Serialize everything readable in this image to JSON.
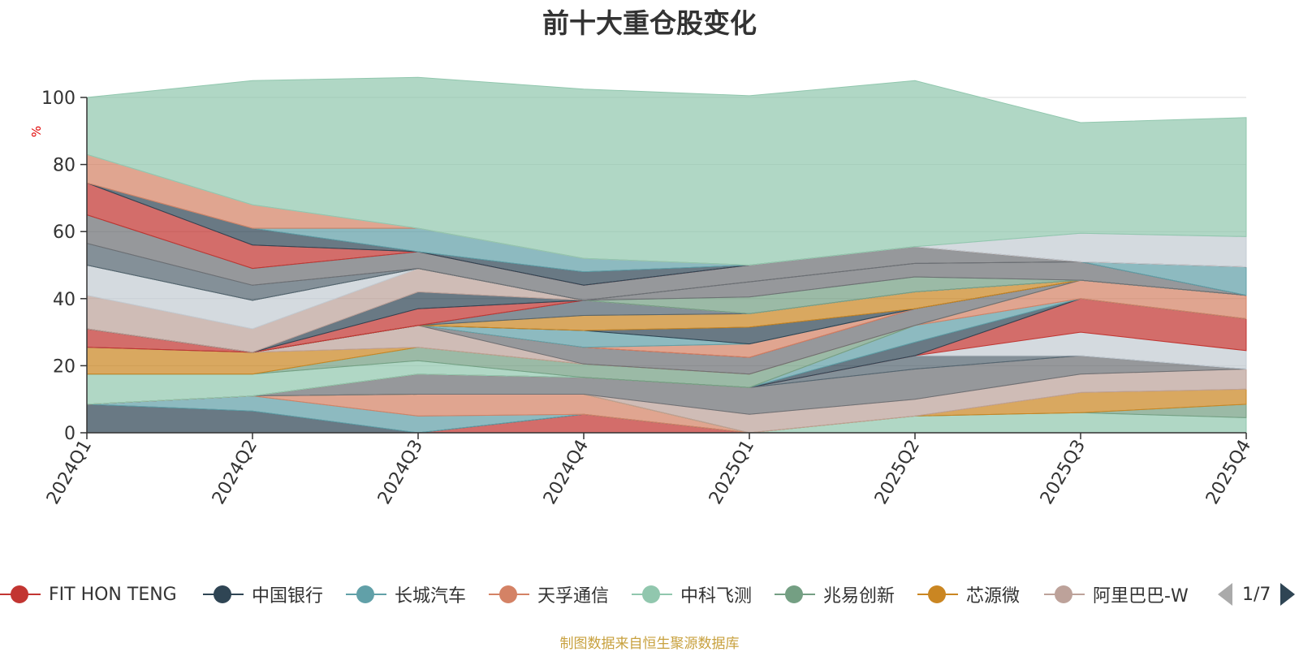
{
  "chart_data": {
    "type": "area",
    "title": "前十大重仓股变化",
    "ylabel": "%",
    "ylim": [
      0,
      100
    ],
    "y_ticks": [
      "0",
      "20",
      "40",
      "60",
      "80",
      "100"
    ],
    "categories": [
      "2024Q1",
      "2024Q2",
      "2024Q3",
      "2024Q4",
      "2025Q1",
      "2025Q2",
      "2025Q3",
      "2025Q4"
    ],
    "grid": true,
    "series": [
      {
        "name": "FIT HON TENG",
        "color": "#c23531",
        "values": [
          0,
          0,
          0,
          5.5,
          0,
          0,
          0,
          0
        ]
      },
      {
        "name": "中国银行",
        "color": "#2f4554",
        "values": [
          8.5,
          6.5,
          0,
          0,
          0,
          0,
          0,
          0
        ]
      },
      {
        "name": "长城汽车",
        "color": "#61a0a8",
        "values": [
          0,
          4.5,
          5,
          0,
          0,
          0,
          0,
          0
        ]
      },
      {
        "name": "天孚通信",
        "color": "#d48265",
        "values": [
          0,
          0,
          6.5,
          6,
          0,
          0,
          0,
          0
        ]
      },
      {
        "name": "中科飞测",
        "color": "#91c7ae",
        "values": [
          0,
          0,
          0,
          0,
          0,
          5,
          6,
          4.5
        ]
      },
      {
        "name": "兆易创新",
        "color": "#749f83",
        "values": [
          0,
          0,
          0,
          0,
          0,
          0,
          0,
          4
        ]
      },
      {
        "name": "芯源微",
        "color": "#ca8622",
        "values": [
          0,
          0,
          0,
          0,
          0,
          0,
          6,
          4.5
        ]
      },
      {
        "name": "阿里巴巴-W",
        "color": "#bda29a",
        "values": [
          0,
          0,
          0,
          0,
          5.5,
          5,
          5.5,
          6
        ]
      },
      {
        "name": "",
        "color": "#6e7074",
        "values": [
          0,
          0,
          6,
          5,
          8,
          9,
          5.5,
          0
        ]
      },
      {
        "name": "",
        "color": "#546570",
        "values": [
          0,
          0,
          0,
          0,
          0,
          4,
          0,
          0
        ]
      },
      {
        "name": "",
        "color": "#c4ccd3",
        "values": [
          0,
          0,
          0,
          0,
          0,
          0,
          7,
          5.5
        ]
      },
      {
        "name": "",
        "color": "#c23531",
        "values": [
          0,
          0,
          0,
          0,
          0,
          0,
          10,
          9.5
        ]
      },
      {
        "name": "",
        "color": "#2f4554",
        "values": [
          0,
          0,
          0,
          0,
          0,
          4,
          0,
          0
        ]
      },
      {
        "name": "",
        "color": "#61a0a8",
        "values": [
          0,
          0,
          0,
          0,
          0,
          5,
          0,
          0
        ]
      },
      {
        "name": "",
        "color": "#d48265",
        "values": [
          0,
          0,
          0,
          0,
          0,
          0,
          5.5,
          7
        ]
      },
      {
        "name": "",
        "color": "#91c7ae",
        "values": [
          9,
          6.5,
          4,
          0,
          0,
          0,
          0,
          0
        ]
      },
      {
        "name": "",
        "color": "#749f83",
        "values": [
          0,
          0,
          4,
          4,
          4,
          0,
          0,
          0
        ]
      },
      {
        "name": "",
        "color": "#ca8622",
        "values": [
          8,
          6.5,
          0,
          0,
          0,
          0,
          0,
          0
        ]
      },
      {
        "name": "",
        "color": "#bda29a",
        "values": [
          0,
          0,
          6.5,
          0,
          0,
          0,
          0,
          0
        ]
      },
      {
        "name": "",
        "color": "#6e7074",
        "values": [
          0,
          0,
          0,
          5,
          5,
          5,
          0,
          0
        ]
      },
      {
        "name": "",
        "color": "#c23531",
        "values": [
          5.5,
          0,
          0,
          0,
          0,
          0,
          0,
          0
        ]
      },
      {
        "name": "",
        "color": "#d48265",
        "values": [
          0,
          0,
          0,
          0,
          4,
          0,
          0,
          0
        ]
      },
      {
        "name": "",
        "color": "#61a0a8",
        "values": [
          0,
          0,
          0,
          5,
          0,
          0,
          0,
          0
        ]
      },
      {
        "name": "",
        "color": "#2f4554",
        "values": [
          0,
          0,
          0,
          0,
          5,
          0,
          0,
          0
        ]
      },
      {
        "name": "",
        "color": "#ca8622",
        "values": [
          0,
          0,
          0,
          4.5,
          4,
          5,
          0,
          0
        ]
      },
      {
        "name": "",
        "color": "#546570",
        "values": [
          0,
          0,
          0,
          4.5,
          0,
          0,
          0,
          0
        ]
      },
      {
        "name": "",
        "color": "#c23531",
        "values": [
          0,
          0,
          5,
          0,
          0,
          0,
          0,
          0
        ]
      },
      {
        "name": "",
        "color": "#2f4554",
        "values": [
          0,
          0,
          5,
          0,
          0,
          0,
          0,
          0
        ]
      },
      {
        "name": "",
        "color": "#bda29a",
        "values": [
          10,
          7,
          7,
          0,
          0,
          0,
          0,
          0
        ]
      },
      {
        "name": "",
        "color": "#c4ccd3",
        "values": [
          9,
          8.5,
          0,
          0,
          0,
          0,
          0,
          0
        ]
      },
      {
        "name": "",
        "color": "#749f83",
        "values": [
          0,
          0,
          0,
          0,
          5,
          4.5,
          0,
          0
        ]
      },
      {
        "name": "",
        "color": "#6e7074",
        "values": [
          0,
          0,
          0,
          0,
          4.5,
          4,
          5.5,
          0
        ]
      },
      {
        "name": "",
        "color": "#546570",
        "values": [
          6.5,
          4.5,
          0,
          0,
          0,
          0,
          0,
          0
        ]
      },
      {
        "name": "",
        "color": "#6e7074",
        "values": [
          8.5,
          5,
          5,
          4.5,
          5,
          5,
          0,
          0
        ]
      },
      {
        "name": "",
        "color": "#61a0a8",
        "values": [
          0,
          0,
          0,
          0,
          0,
          0,
          0,
          8.5
        ]
      },
      {
        "name": "",
        "color": "#c23531",
        "values": [
          9.5,
          7,
          0,
          0,
          0,
          0,
          0,
          0
        ]
      },
      {
        "name": "",
        "color": "#2f4554",
        "values": [
          0,
          5,
          0,
          4,
          0,
          0,
          0,
          0
        ]
      },
      {
        "name": "",
        "color": "#61a0a8",
        "values": [
          0,
          0,
          7,
          4,
          0,
          0,
          0,
          0
        ]
      },
      {
        "name": "",
        "color": "#d48265",
        "values": [
          8.5,
          7,
          0,
          0,
          0,
          0,
          0,
          0
        ]
      },
      {
        "name": "",
        "color": "#c4ccd3",
        "values": [
          0,
          0,
          0,
          0,
          0,
          0,
          8.5,
          9
        ]
      },
      {
        "name": "",
        "color": "#91c7ae",
        "values": [
          17,
          37,
          45,
          50.5,
          50.5,
          49.5,
          33,
          35.5
        ]
      }
    ],
    "legend_position": "bottom"
  },
  "legend": {
    "items": [
      {
        "label": "FIT HON TENG",
        "color": "#c23531"
      },
      {
        "label": "中国银行",
        "color": "#2f4554"
      },
      {
        "label": "长城汽车",
        "color": "#61a0a8"
      },
      {
        "label": "天孚通信",
        "color": "#d48265"
      },
      {
        "label": "中科飞测",
        "color": "#91c7ae"
      },
      {
        "label": "兆易创新",
        "color": "#749f83"
      },
      {
        "label": "芯源微",
        "color": "#ca8622"
      },
      {
        "label": "阿里巴巴-W",
        "color": "#bda29a"
      }
    ],
    "page_indicator": "1/7"
  },
  "source_note": "制图数据来自恒生聚源数据库"
}
